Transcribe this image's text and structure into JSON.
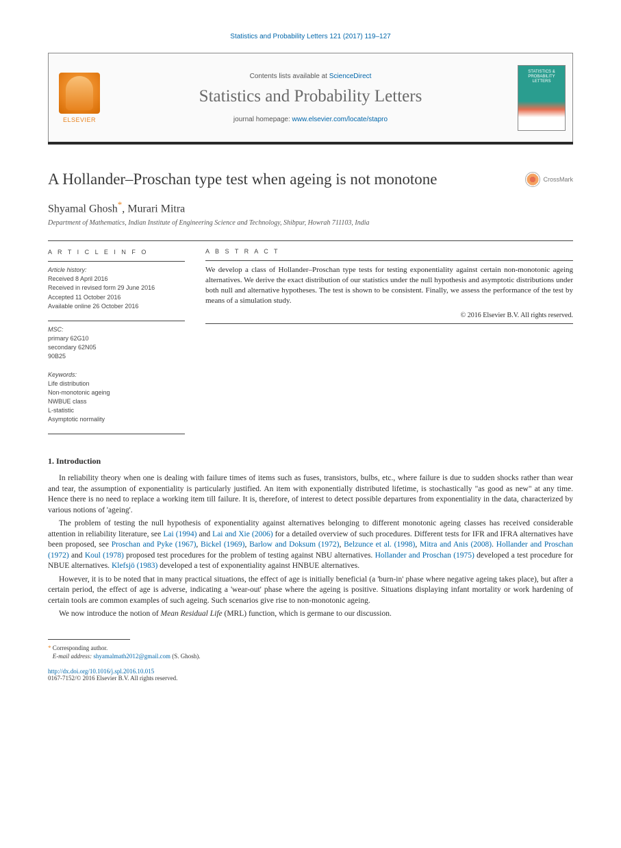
{
  "citation": "Statistics and Probability Letters 121 (2017) 119–127",
  "masthead": {
    "contents_prefix": "Contents lists available at ",
    "contents_link": "ScienceDirect",
    "journal": "Statistics and Probability Letters",
    "homepage_prefix": "journal homepage: ",
    "homepage_url": "www.elsevier.com/locate/stapro",
    "publisher": "ELSEVIER",
    "cover_text": "STATISTICS & PROBABILITY LETTERS"
  },
  "title": "A Hollander–Proschan type test when ageing is not monotone",
  "crossmark": "CrossMark",
  "authors_html": "Shyamal Ghosh*, Murari Mitra",
  "author1": "Shyamal Ghosh",
  "author2": "Murari Mitra",
  "affiliation": "Department of Mathematics, Indian Institute of Engineering Science and Technology, Shibpur, Howrah 711103, India",
  "info": {
    "heading": "A R T I C L E   I N F O",
    "history_label": "Article history:",
    "history": [
      "Received 8 April 2016",
      "Received in revised form 29 June 2016",
      "Accepted 11 October 2016",
      "Available online 26 October 2016"
    ],
    "msc_label": "MSC:",
    "msc": [
      "primary 62G10",
      "secondary 62N05",
      "90B25"
    ],
    "kw_label": "Keywords:",
    "keywords": [
      "Life distribution",
      "Non-monotonic ageing",
      "NWBUE class",
      "L-statistic",
      "Asymptotic normality"
    ]
  },
  "abstract": {
    "heading": "A B S T R A C T",
    "text": "We develop a class of Hollander–Proschan type tests for testing exponentiality against certain non-monotonic ageing alternatives. We derive the exact distribution of our statistics under the null hypothesis and asymptotic distributions under both null and alternative hypotheses. The test is shown to be consistent. Finally, we assess the performance of the test by means of a simulation study.",
    "copyright": "© 2016 Elsevier B.V. All rights reserved."
  },
  "section1_heading": "1. Introduction",
  "para1": "In reliability theory when one is dealing with failure times of items such as fuses, transistors, bulbs, etc., where failure is due to sudden shocks rather than wear and tear, the assumption of exponentiality is particularly justified. An item with exponentially distributed lifetime, is stochastically \"as good as new\" at any time. Hence there is no need to replace a working item till failure. It is, therefore, of interest to detect possible departures from exponentiality in the data, characterized by various notions of 'ageing'.",
  "para2_pre": "The problem of testing the null hypothesis of exponentiality against alternatives belonging to different monotonic ageing classes has received considerable attention in reliability literature, see ",
  "refs": {
    "lai1994": "Lai (1994)",
    "laixie2006": "Lai and Xie (2006)",
    "proschanpyke1967": "Proschan and Pyke (1967)",
    "bickel1969": "Bickel (1969)",
    "barlowdoksum1972": "Barlow and Doksum (1972)",
    "belzunce1998": "Belzunce et al. (1998)",
    "mitraanis2008": "Mitra and Anis (2008)",
    "hollanderproschan1972": "Hollander and Proschan (1972)",
    "koul1978": "Koul (1978)",
    "hollanderproschan1975": "Hollander and Proschan (1975)",
    "klefsjo1983": "Klefsjö (1983)"
  },
  "para2_mid1": " and ",
  "para2_mid2": " for a detailed overview of such procedures. Different tests for IFR and IFRA alternatives have been proposed, see ",
  "para2_mid3": " proposed test procedures for the problem of testing against NBU alternatives. ",
  "para2_mid4": " developed a test procedure for NBUE alternatives. ",
  "para2_mid5": " developed a test of exponentiality against HNBUE alternatives.",
  "para3": "However, it is to be noted that in many practical situations, the effect of age is initially beneficial (a 'burn-in' phase where negative ageing takes place), but after a certain period, the effect of age is adverse, indicating a 'wear-out' phase where the ageing is positive. Situations displaying infant mortality or work hardening of certain tools are common examples of such ageing. Such scenarios give rise to non-monotonic ageing.",
  "para4_pre": "We now introduce the notion of ",
  "para4_ital": "Mean Residual Life",
  "para4_post": " (MRL) function, which is germane to our discussion.",
  "footnote": {
    "corresponding": "Corresponding author.",
    "email_label": "E-mail address:",
    "email": "shyamalmath2012@gmail.com",
    "email_suffix": " (S. Ghosh)."
  },
  "doi": "http://dx.doi.org/10.1016/j.spl.2016.10.015",
  "issn": "0167-7152/© 2016 Elsevier B.V. All rights reserved.",
  "colors": {
    "link": "#0066aa",
    "elsevier_orange": "#e8831e",
    "text": "#2a2a2a",
    "grey": "#6a6a6a"
  }
}
